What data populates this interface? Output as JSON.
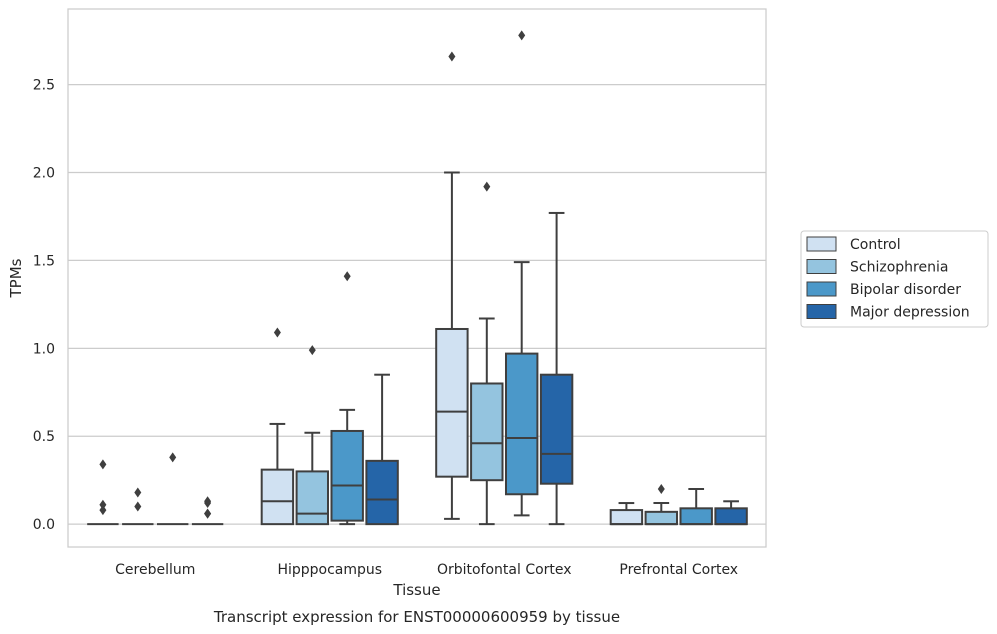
{
  "chart_data": {
    "type": "box",
    "xlabel": "Tissue",
    "ylabel": "TPMs",
    "caption": "Transcript expression for ENST00000600959 by tissue",
    "ylim": [
      -0.13,
      2.93
    ],
    "yticks": [
      0.0,
      0.5,
      1.0,
      1.5,
      2.0,
      2.5
    ],
    "ytick_labels": [
      "0.0",
      "0.5",
      "1.0",
      "1.5",
      "2.0",
      "2.5"
    ],
    "grid": "horizontal",
    "legend_position": "right",
    "categories": [
      "Cerebellum",
      "Hipppocampus",
      "Orbitofontal Cortex",
      "Prefrontal Cortex"
    ],
    "series": [
      {
        "name": "Control",
        "color": "#d0e1f2",
        "boxes": [
          {
            "whislo": 0,
            "q1": 0,
            "med": 0,
            "q3": 0,
            "whishi": 0,
            "fliers": [
              0.08,
              0.11,
              0.34
            ]
          },
          {
            "whislo": 0,
            "q1": 0,
            "med": 0.13,
            "q3": 0.31,
            "whishi": 0.57,
            "fliers": [
              1.09
            ]
          },
          {
            "whislo": 0.03,
            "q1": 0.27,
            "med": 0.64,
            "q3": 1.11,
            "whishi": 2.0,
            "fliers": [
              2.66
            ]
          },
          {
            "whislo": 0,
            "q1": 0,
            "med": 0,
            "q3": 0.08,
            "whishi": 0.12,
            "fliers": []
          }
        ]
      },
      {
        "name": "Schizophrenia",
        "color": "#94c4df",
        "boxes": [
          {
            "whislo": 0,
            "q1": 0,
            "med": 0,
            "q3": 0,
            "whishi": 0,
            "fliers": [
              0.1,
              0.18
            ]
          },
          {
            "whislo": 0,
            "q1": 0,
            "med": 0.06,
            "q3": 0.3,
            "whishi": 0.52,
            "fliers": [
              0.99
            ]
          },
          {
            "whislo": 0,
            "q1": 0.25,
            "med": 0.46,
            "q3": 0.8,
            "whishi": 1.17,
            "fliers": [
              1.92
            ]
          },
          {
            "whislo": 0,
            "q1": 0,
            "med": 0,
            "q3": 0.07,
            "whishi": 0.12,
            "fliers": [
              0.2
            ]
          }
        ]
      },
      {
        "name": "Bipolar disorder",
        "color": "#4b98c9",
        "boxes": [
          {
            "whislo": 0,
            "q1": 0,
            "med": 0,
            "q3": 0,
            "whishi": 0,
            "fliers": [
              0.38
            ]
          },
          {
            "whislo": 0,
            "q1": 0.02,
            "med": 0.22,
            "q3": 0.53,
            "whishi": 0.65,
            "fliers": [
              1.41
            ]
          },
          {
            "whislo": 0.05,
            "q1": 0.17,
            "med": 0.49,
            "q3": 0.97,
            "whishi": 1.49,
            "fliers": [
              2.78
            ]
          },
          {
            "whislo": 0,
            "q1": 0,
            "med": 0,
            "q3": 0.09,
            "whishi": 0.2,
            "fliers": []
          }
        ]
      },
      {
        "name": "Major depression",
        "color": "#2565a8",
        "boxes": [
          {
            "whislo": 0,
            "q1": 0,
            "med": 0,
            "q3": 0,
            "whishi": 0,
            "fliers": [
              0.06,
              0.06,
              0.12,
              0.13
            ]
          },
          {
            "whislo": 0,
            "q1": 0,
            "med": 0.14,
            "q3": 0.36,
            "whishi": 0.85,
            "fliers": []
          },
          {
            "whislo": 0,
            "q1": 0.23,
            "med": 0.4,
            "q3": 0.85,
            "whishi": 1.77,
            "fliers": []
          },
          {
            "whislo": 0,
            "q1": 0,
            "med": 0,
            "q3": 0.09,
            "whishi": 0.13,
            "fliers": []
          }
        ]
      }
    ]
  }
}
